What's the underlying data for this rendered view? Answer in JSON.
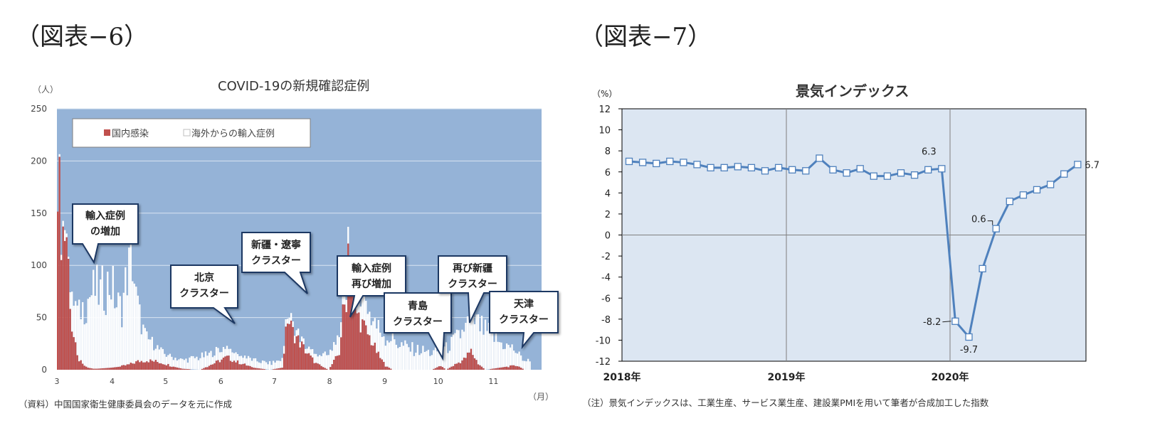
{
  "left": {
    "fig_label": "（図表−6）",
    "title": "COVID-19の新規確認症例",
    "unit": "（人）",
    "x_unit": "（月）",
    "note": "（資料）中国国家衛生健康委員会のデータを元に作成",
    "legend": {
      "domestic": "国内感染",
      "imported": "海外からの輸入症例"
    },
    "callouts": {
      "c1": [
        "輸入症例",
        "の増加"
      ],
      "c2": [
        "北京",
        "クラスター"
      ],
      "c3": [
        "新疆・遼寧",
        "クラスター"
      ],
      "c4": [
        "輸入症例",
        "再び増加"
      ],
      "c5": [
        "青島",
        "クラスター"
      ],
      "c6": [
        "再び新疆",
        "クラスター"
      ],
      "c7": [
        "天津",
        "クラスター"
      ]
    }
  },
  "right": {
    "fig_label": "（図表−7）",
    "title": "景気インデックス",
    "unit": "（%）",
    "note": "（注）景気インデックスは、工業生産、サービス業生産、建設業PMIを用いて筆者が合成加工した指数"
  },
  "chart_data": [
    {
      "type": "bar",
      "stacked": true,
      "title": "COVID-19の新規確認症例",
      "ylabel": "（人）",
      "xlabel": "（月）",
      "ylim": [
        0,
        250
      ],
      "yticks": [
        0,
        50,
        100,
        150,
        200,
        250
      ],
      "x_ticks": [
        "3",
        "4",
        "5",
        "6",
        "7",
        "8",
        "9",
        "10",
        "11"
      ],
      "colors": {
        "domestic": "#c0504d",
        "imported": "#ffffff",
        "plot_bg": "#95b3d7"
      },
      "grid": true,
      "legend_position": "top-left",
      "series": [
        {
          "name": "国内感染",
          "points": [
            [
              0,
              0,
              202
            ],
            [
              2,
              1,
              135
            ],
            [
              5,
              2,
              130
            ],
            [
              8,
              3,
              40
            ],
            [
              11,
              4,
              12
            ],
            [
              14,
              6,
              5
            ],
            [
              17,
              8,
              2
            ],
            [
              20,
              10,
              1
            ],
            [
              22,
              12,
              1
            ],
            [
              30,
              30,
              2
            ],
            [
              35,
              35,
              3
            ],
            [
              40,
              40,
              5
            ],
            [
              45,
              45,
              8
            ],
            [
              50,
              48,
              9
            ],
            [
              55,
              52,
              8
            ],
            [
              60,
              56,
              6
            ],
            [
              65,
              60,
              3
            ],
            [
              70,
              62,
              1
            ],
            [
              80,
              70,
              0
            ],
            [
              95,
              80,
              12
            ],
            [
              100,
              84,
              8
            ],
            [
              105,
              88,
              5
            ],
            [
              110,
              90,
              2
            ],
            [
              119,
              100,
              0
            ],
            [
              126,
              106,
              2
            ],
            [
              129,
              108,
              50
            ],
            [
              132,
              111,
              36
            ],
            [
              136,
              114,
              26
            ],
            [
              140,
              117,
              16
            ],
            [
              145,
              121,
              6
            ],
            [
              152,
              127,
              0
            ],
            [
              155,
              130,
              8
            ],
            [
              158,
              132,
              16
            ],
            [
              160,
              134,
              52
            ],
            [
              162,
              136,
              70
            ],
            [
              163,
              137,
              120
            ],
            [
              165,
              139,
              84
            ],
            [
              168,
              142,
              54
            ],
            [
              172,
              145,
              40
            ],
            [
              176,
              149,
              28
            ],
            [
              180,
              152,
              14
            ],
            [
              184,
              155,
              4
            ],
            [
              188,
              158,
              0
            ],
            [
              210,
              180,
              0
            ],
            [
              215,
              184,
              4
            ],
            [
              218,
              186,
              0
            ],
            [
              228,
              195,
              10
            ],
            [
              232,
              198,
              18
            ],
            [
              236,
              202,
              6
            ],
            [
              240,
              206,
              0
            ],
            [
              252,
              214,
              3
            ],
            [
              258,
              220,
              4
            ],
            [
              262,
              224,
              0
            ]
          ]
        },
        {
          "name": "海外からの輸入症例",
          "points": [
            [
              0,
              0,
              0
            ],
            [
              2,
              1,
              5
            ],
            [
              4,
              2,
              8
            ],
            [
              6,
              3,
              2
            ],
            [
              8,
              4,
              30
            ],
            [
              12,
              8,
              45
            ],
            [
              15,
              11,
              58
            ],
            [
              18,
              14,
              70
            ],
            [
              21,
              17,
              75
            ],
            [
              24,
              20,
              72
            ],
            [
              27,
              23,
              78
            ],
            [
              30,
              26,
              82
            ],
            [
              33,
              30,
              60
            ],
            [
              36,
              33,
              55
            ],
            [
              39,
              36,
              88
            ],
            [
              42,
              39,
              100
            ],
            [
              44,
              41,
              60
            ],
            [
              47,
              44,
              36
            ],
            [
              50,
              47,
              22
            ],
            [
              55,
              52,
              15
            ],
            [
              60,
              57,
              10
            ],
            [
              70,
              65,
              8
            ],
            [
              80,
              72,
              12
            ],
            [
              90,
              80,
              10
            ],
            [
              100,
              88,
              8
            ],
            [
              110,
              95,
              7
            ],
            [
              120,
              102,
              6
            ],
            [
              126,
              107,
              8
            ],
            [
              130,
              110,
              6
            ],
            [
              140,
              118,
              5
            ],
            [
              150,
              126,
              12
            ],
            [
              156,
              131,
              16
            ],
            [
              160,
              134,
              10
            ],
            [
              165,
              139,
              18
            ],
            [
              170,
              144,
              30
            ],
            [
              175,
              148,
              22
            ],
            [
              182,
              154,
              26
            ],
            [
              188,
              159,
              30
            ],
            [
              192,
              163,
              24
            ],
            [
              198,
              168,
              20
            ],
            [
              205,
              175,
              18
            ],
            [
              212,
              180,
              15
            ],
            [
              218,
              186,
              20
            ],
            [
              224,
              191,
              25
            ],
            [
              230,
              196,
              30
            ],
            [
              236,
              201,
              38
            ],
            [
              242,
              206,
              35
            ],
            [
              248,
              211,
              24
            ],
            [
              254,
              216,
              18
            ],
            [
              260,
              222,
              10
            ],
            [
              265,
              226,
              8
            ]
          ]
        }
      ]
    },
    {
      "type": "line",
      "title": "景気インデックス",
      "ylabel": "（%）",
      "ylim": [
        -12,
        12
      ],
      "yticks": [
        -12,
        -10,
        -8,
        -6,
        -4,
        -2,
        0,
        2,
        4,
        6,
        8,
        10,
        12
      ],
      "x_ticks": [
        "2018年",
        "2019年",
        "2020年"
      ],
      "grid": true,
      "line_color": "#4f81bd",
      "plot_bg": "#dce6f2",
      "series": [
        {
          "name": "景気インデックス",
          "values": [
            7.0,
            6.9,
            6.8,
            7.0,
            6.9,
            6.7,
            6.4,
            6.4,
            6.5,
            6.4,
            6.1,
            6.4,
            6.2,
            6.1,
            7.3,
            6.2,
            5.9,
            6.3,
            5.6,
            5.6,
            5.9,
            5.7,
            6.2,
            6.3,
            -8.2,
            -9.7,
            -3.2,
            0.6,
            3.2,
            3.8,
            4.3,
            4.8,
            5.8,
            6.7
          ]
        }
      ],
      "data_labels": [
        {
          "index": 23,
          "text": "6.3"
        },
        {
          "index": 24,
          "text": "-8.2"
        },
        {
          "index": 25,
          "text": "-9.7"
        },
        {
          "index": 27,
          "text": "0.6"
        },
        {
          "index": 33,
          "text": "6.7"
        }
      ]
    }
  ]
}
